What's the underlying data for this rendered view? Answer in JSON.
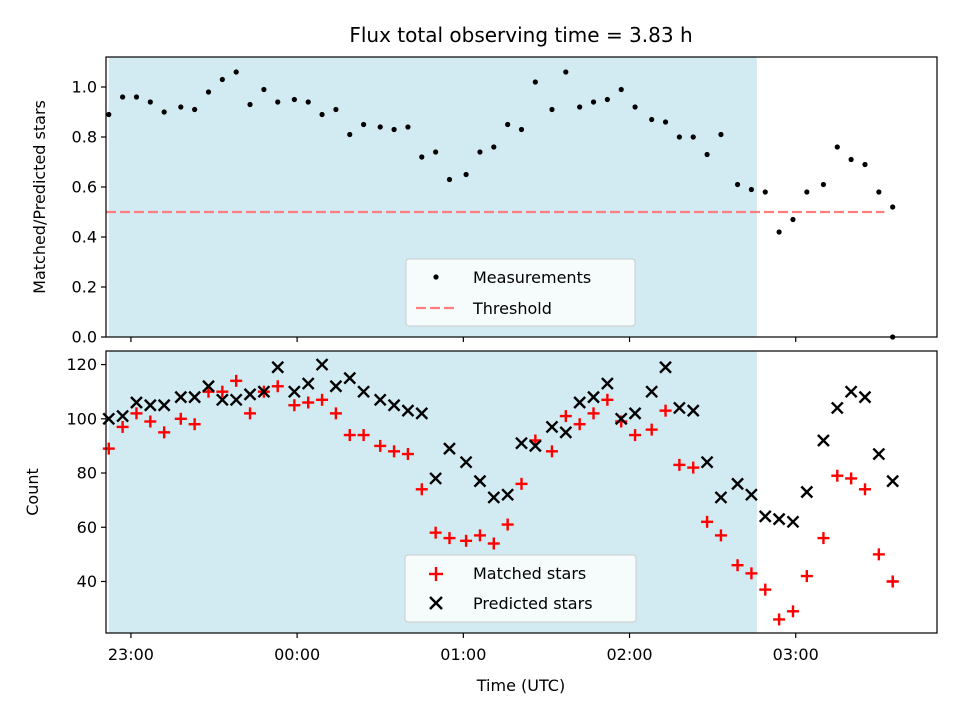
{
  "chart_data": [
    {
      "type": "scatter",
      "title": "Flux total observing time = 3.83 h",
      "xlabel": "",
      "ylabel": "Matched/Predicted stars",
      "ylim": [
        0,
        1.12
      ],
      "yticks": [
        "0.0",
        "0.2",
        "0.4",
        "0.6",
        "0.8",
        "1.0"
      ],
      "xlim": [
        "22:51",
        "03:51"
      ],
      "shaded_span": [
        "22:52",
        "02:46"
      ],
      "shade_color": "#add8e6",
      "threshold": 0.5,
      "threshold_range": [
        "22:51",
        "03:32"
      ],
      "threshold_color": "#ff7f7f",
      "legend": {
        "position": "lower-center",
        "entries": [
          "Measurements",
          "Threshold"
        ]
      },
      "series": [
        {
          "name": "Measurements",
          "marker": "dot",
          "color": "#000000",
          "x": [
            "22:52",
            "22:57",
            "23:02",
            "23:07",
            "23:12",
            "23:18",
            "23:23",
            "23:28",
            "23:33",
            "23:38",
            "23:43",
            "23:48",
            "23:53",
            "23:59",
            "00:04",
            "00:09",
            "00:14",
            "00:19",
            "00:24",
            "00:30",
            "00:35",
            "00:40",
            "00:45",
            "00:50",
            "00:55",
            "01:01",
            "01:06",
            "01:11",
            "01:16",
            "01:21",
            "01:26",
            "01:32",
            "01:37",
            "01:42",
            "01:47",
            "01:52",
            "01:57",
            "02:02",
            "02:08",
            "02:13",
            "02:18",
            "02:23",
            "02:28",
            "02:33",
            "02:39",
            "02:44",
            "02:49",
            "02:54",
            "02:59",
            "03:04",
            "03:10",
            "03:15",
            "03:20",
            "03:25",
            "03:30",
            "03:35"
          ],
          "values": [
            0.89,
            0.96,
            0.96,
            0.94,
            0.9,
            0.92,
            0.91,
            0.98,
            1.03,
            1.06,
            0.93,
            0.99,
            0.94,
            0.95,
            0.94,
            0.89,
            0.91,
            0.81,
            0.85,
            0.84,
            0.83,
            0.84,
            0.72,
            0.74,
            0.63,
            0.65,
            0.74,
            0.76,
            0.85,
            0.83,
            1.02,
            0.91,
            1.06,
            0.92,
            0.94,
            0.95,
            0.99,
            0.92,
            0.87,
            0.86,
            0.8,
            0.8,
            0.73,
            0.81,
            0.61,
            0.59,
            0.58,
            0.42,
            0.47,
            0.58,
            0.61,
            0.76,
            0.71,
            0.69,
            0.58,
            0.52
          ]
        },
        {
          "name": "",
          "marker": "dot",
          "color": "#000000",
          "x": [
            "03:35"
          ],
          "values": [
            0.0
          ]
        }
      ]
    },
    {
      "type": "scatter",
      "title": "",
      "xlabel": "Time (UTC)",
      "ylabel": "Count",
      "ylim": [
        21,
        125
      ],
      "yticks": [
        "40",
        "60",
        "80",
        "100",
        "120"
      ],
      "xticks": [
        "23:00",
        "00:00",
        "01:00",
        "02:00",
        "03:00"
      ],
      "legend": {
        "position": "lower-center",
        "entries": [
          "Matched stars",
          "Predicted stars"
        ]
      },
      "series": [
        {
          "name": "Matched stars",
          "marker": "plus",
          "color": "#ff0000",
          "x": [
            "22:52",
            "22:57",
            "23:02",
            "23:07",
            "23:12",
            "23:18",
            "23:23",
            "23:28",
            "23:33",
            "23:38",
            "23:43",
            "23:48",
            "23:53",
            "23:59",
            "00:04",
            "00:09",
            "00:14",
            "00:19",
            "00:24",
            "00:30",
            "00:35",
            "00:40",
            "00:45",
            "00:50",
            "00:55",
            "01:01",
            "01:06",
            "01:11",
            "01:16",
            "01:21",
            "01:26",
            "01:32",
            "01:37",
            "01:42",
            "01:47",
            "01:52",
            "01:57",
            "02:02",
            "02:08",
            "02:13",
            "02:18",
            "02:23",
            "02:28",
            "02:33",
            "02:39",
            "02:44",
            "02:49",
            "02:54",
            "02:59",
            "03:04",
            "03:10",
            "03:15",
            "03:20",
            "03:25",
            "03:30",
            "03:35"
          ],
          "values": [
            89,
            97,
            102,
            99,
            95,
            100,
            98,
            110,
            110,
            114,
            102,
            110,
            112,
            105,
            106,
            107,
            102,
            94,
            94,
            90,
            88,
            87,
            74,
            58,
            56,
            55,
            57,
            54,
            61,
            76,
            92,
            88,
            101,
            98,
            102,
            107,
            99,
            94,
            96,
            103,
            83,
            82,
            62,
            57,
            46,
            43,
            37,
            26,
            29,
            42,
            56,
            79,
            78,
            74,
            50,
            40
          ]
        },
        {
          "name": "Predicted stars",
          "marker": "x",
          "color": "#000000",
          "x": [
            "22:52",
            "22:57",
            "23:02",
            "23:07",
            "23:12",
            "23:18",
            "23:23",
            "23:28",
            "23:33",
            "23:38",
            "23:43",
            "23:48",
            "23:53",
            "23:59",
            "00:04",
            "00:09",
            "00:14",
            "00:19",
            "00:24",
            "00:30",
            "00:35",
            "00:40",
            "00:45",
            "00:50",
            "00:55",
            "01:01",
            "01:06",
            "01:11",
            "01:16",
            "01:21",
            "01:26",
            "01:32",
            "01:37",
            "01:42",
            "01:47",
            "01:52",
            "01:57",
            "02:02",
            "02:08",
            "02:13",
            "02:18",
            "02:23",
            "02:28",
            "02:33",
            "02:39",
            "02:44",
            "02:49",
            "02:54",
            "02:59",
            "03:04",
            "03:10",
            "03:15",
            "03:20",
            "03:25",
            "03:30",
            "03:35"
          ],
          "values": [
            100,
            101,
            106,
            105,
            105,
            108,
            108,
            112,
            107,
            107,
            109,
            110,
            119,
            110,
            113,
            120,
            112,
            115,
            110,
            107,
            105,
            103,
            102,
            78,
            89,
            84,
            77,
            71,
            72,
            91,
            90,
            97,
            95,
            106,
            108,
            113,
            100,
            102,
            110,
            119,
            104,
            103,
            84,
            71,
            76,
            72,
            64,
            63,
            62,
            73,
            92,
            104,
            110,
            108,
            87,
            77
          ]
        },
        {
          "name": "",
          "marker": "plus",
          "color": "#ff0000",
          "x": [
            "03:35"
          ],
          "values": [
            40
          ]
        }
      ]
    }
  ]
}
